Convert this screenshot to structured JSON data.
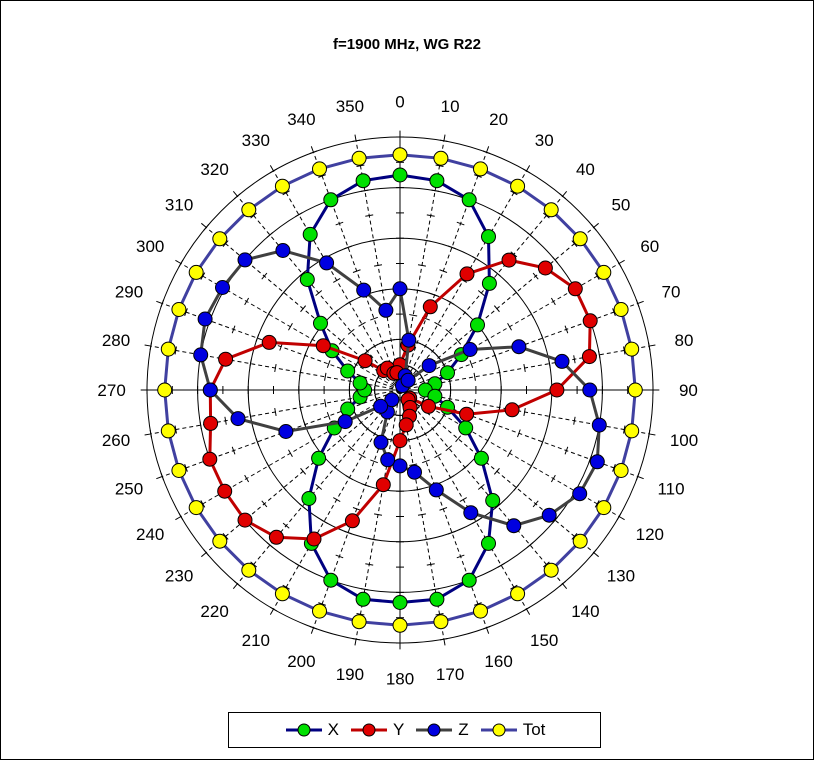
{
  "chart_data": {
    "type": "polar-line",
    "title": "f=1900 MHz, WG R22",
    "angle_labels": [
      "0",
      "10",
      "20",
      "30",
      "40",
      "50",
      "60",
      "70",
      "80",
      "90",
      "100",
      "110",
      "120",
      "130",
      "140",
      "150",
      "160",
      "170",
      "180",
      "190",
      "200",
      "210",
      "220",
      "230",
      "240",
      "250",
      "260",
      "270",
      "280",
      "290",
      "300",
      "310",
      "320",
      "330",
      "340",
      "350"
    ],
    "angles": [
      0,
      10,
      20,
      30,
      40,
      50,
      60,
      70,
      80,
      90,
      100,
      110,
      120,
      130,
      140,
      150,
      160,
      170,
      180,
      190,
      200,
      210,
      220,
      230,
      240,
      250,
      260,
      270,
      280,
      290,
      300,
      310,
      320,
      330,
      340,
      350
    ],
    "rmax": 1.0,
    "rings": [
      0.2,
      0.4,
      0.6,
      0.8,
      1.0
    ],
    "grid": true,
    "legend_position": "bottom",
    "series": [
      {
        "name": "X",
        "line_color": "#000080",
        "marker_color": "#00e000",
        "values": [
          0.85,
          0.84,
          0.8,
          0.7,
          0.55,
          0.4,
          0.28,
          0.2,
          0.14,
          0.1,
          0.14,
          0.2,
          0.3,
          0.42,
          0.57,
          0.7,
          0.8,
          0.84,
          0.84,
          0.84,
          0.8,
          0.7,
          0.56,
          0.42,
          0.3,
          0.22,
          0.16,
          0.14,
          0.16,
          0.22,
          0.31,
          0.41,
          0.57,
          0.71,
          0.8,
          0.84
        ]
      },
      {
        "name": "Y",
        "line_color": "#c00000",
        "marker_color": "#e00000",
        "values": [
          0.1,
          0.18,
          0.35,
          0.53,
          0.67,
          0.75,
          0.8,
          0.8,
          0.76,
          0.62,
          0.45,
          0.28,
          0.13,
          0.05,
          0.05,
          0.08,
          0.11,
          0.14,
          0.2,
          0.38,
          0.55,
          0.68,
          0.76,
          0.8,
          0.8,
          0.8,
          0.76,
          0.75,
          0.7,
          0.55,
          0.35,
          0.18,
          0.1,
          0.1,
          0.07,
          0.07
        ]
      },
      {
        "name": "Z",
        "line_color": "#404040",
        "marker_color": "#0000e0",
        "values": [
          0.4,
          0.2,
          0.06,
          0.02,
          0.05,
          0.15,
          0.32,
          0.5,
          0.65,
          0.75,
          0.8,
          0.83,
          0.82,
          0.77,
          0.7,
          0.56,
          0.42,
          0.33,
          0.3,
          0.28,
          0.22,
          0.1,
          0.05,
          0.1,
          0.25,
          0.48,
          0.65,
          0.75,
          0.8,
          0.82,
          0.81,
          0.8,
          0.72,
          0.58,
          0.42,
          0.32
        ]
      },
      {
        "name": "Tot",
        "line_color": "#4040a0",
        "marker_color": "#ffff00",
        "values": [
          0.93,
          0.93,
          0.93,
          0.93,
          0.93,
          0.93,
          0.93,
          0.93,
          0.93,
          0.93,
          0.93,
          0.93,
          0.93,
          0.93,
          0.93,
          0.93,
          0.93,
          0.93,
          0.93,
          0.93,
          0.93,
          0.93,
          0.93,
          0.93,
          0.93,
          0.93,
          0.93,
          0.93,
          0.93,
          0.93,
          0.93,
          0.93,
          0.93,
          0.93,
          0.93,
          0.93
        ]
      }
    ]
  }
}
